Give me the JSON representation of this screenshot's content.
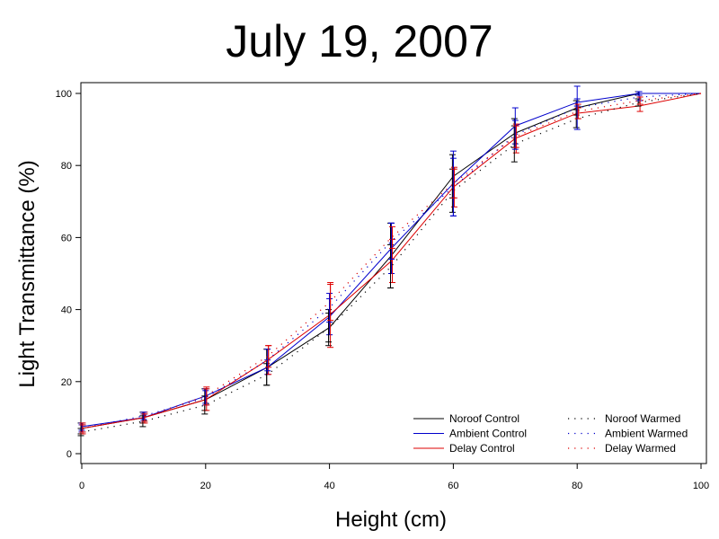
{
  "chart_data": {
    "type": "line",
    "title": "July 19, 2007",
    "xlabel": "Height (cm)",
    "ylabel": "Light Transmittance (%)",
    "xlim": [
      0,
      100
    ],
    "ylim": [
      0,
      100
    ],
    "xticks": [
      0,
      20,
      40,
      60,
      80,
      100
    ],
    "yticks": [
      0,
      20,
      40,
      60,
      80,
      100
    ],
    "grid": false,
    "legend_position": "bottom-right",
    "x": [
      0,
      10,
      20,
      30,
      40,
      50,
      60,
      70,
      80,
      90,
      100
    ],
    "series": [
      {
        "name": "Noroof Control",
        "color": "#000000",
        "style": "solid",
        "values": [
          7,
          10,
          15,
          24,
          35,
          55,
          77,
          89,
          96,
          100,
          100
        ],
        "error": [
          1.5,
          1.5,
          3,
          5,
          5,
          9,
          6,
          4,
          2,
          0.5,
          0
        ]
      },
      {
        "name": "Ambient Control",
        "color": "#0000cc",
        "style": "solid",
        "values": [
          7.5,
          10,
          16,
          24,
          38,
          57,
          75,
          91,
          97.5,
          100,
          100
        ],
        "error": [
          1,
          1,
          2,
          2,
          5,
          7,
          9,
          5,
          1,
          0.5,
          0
        ]
      },
      {
        "name": "Delay Control",
        "color": "#dd0000",
        "style": "solid",
        "values": [
          7,
          10,
          15,
          26,
          38.5,
          53.5,
          74,
          87.5,
          94.5,
          96.5,
          100
        ],
        "error": [
          1.5,
          1.5,
          3,
          4,
          9,
          6,
          5.5,
          4,
          1.5,
          1.5,
          0
        ]
      },
      {
        "name": "Noroof Warmed",
        "color": "#000000",
        "style": "dotted",
        "values": [
          6,
          9,
          13.5,
          22,
          35,
          52,
          73,
          86,
          93,
          97.5,
          100
        ],
        "error": [
          1,
          1.5,
          2.5,
          3,
          4,
          6,
          6,
          5,
          2.5,
          1,
          0
        ]
      },
      {
        "name": "Ambient Warmed",
        "color": "#0000cc",
        "style": "dotted",
        "values": [
          7,
          10.5,
          15.5,
          26,
          40.5,
          59,
          74,
          88.5,
          96,
          99,
          100
        ],
        "error": [
          1,
          1,
          2,
          3,
          4,
          5,
          8,
          4,
          6,
          1,
          0
        ]
      },
      {
        "name": "Delay Warmed",
        "color": "#dd0000",
        "style": "dotted",
        "values": [
          7,
          10,
          16,
          27,
          42,
          60,
          75,
          88,
          95,
          98,
          100
        ],
        "error": [
          1,
          1,
          2.5,
          3,
          5,
          3,
          4,
          3,
          2,
          1,
          0
        ]
      }
    ]
  }
}
